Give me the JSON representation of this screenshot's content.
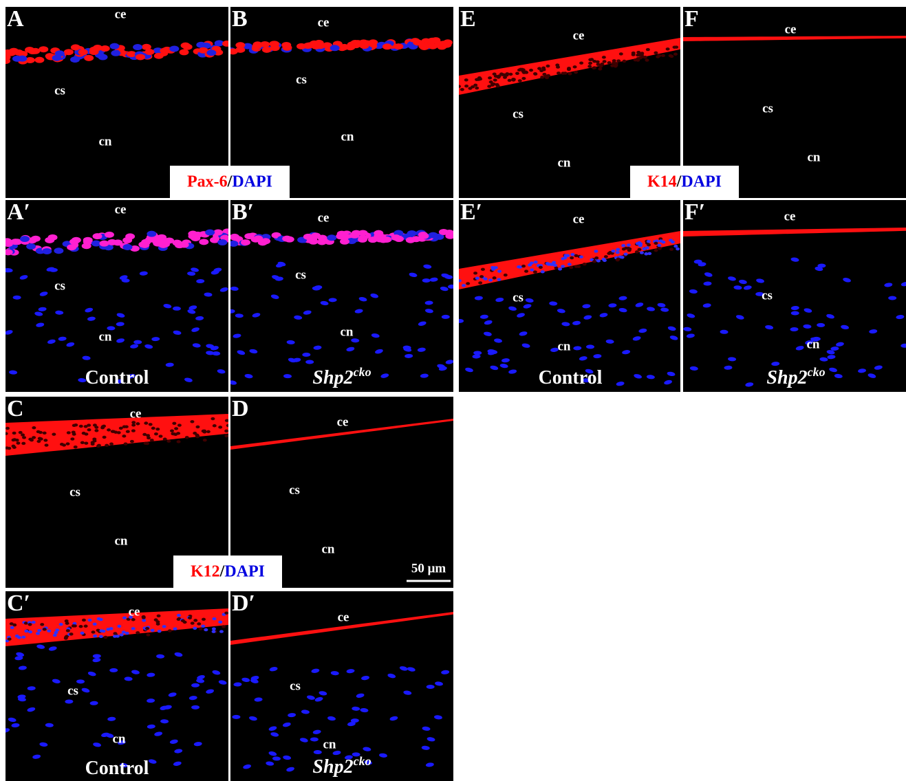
{
  "panels": [
    {
      "letter": "A",
      "ce": "ce",
      "cs": "cs",
      "cn": "cn"
    },
    {
      "letter": "B",
      "ce": "ce",
      "cs": "cs",
      "cn": "cn"
    },
    {
      "letter": "A′",
      "ce": "ce",
      "cs": "cs",
      "cn": "cn",
      "condition": {
        "name": "Control"
      }
    },
    {
      "letter": "B′",
      "ce": "ce",
      "cs": "cs",
      "cn": "cn",
      "condition": {
        "name": "Shp2",
        "sup": "cko"
      }
    },
    {
      "letter": "E",
      "ce": "ce",
      "cs": "cs",
      "cn": "cn"
    },
    {
      "letter": "F",
      "ce": "ce",
      "cs": "cs",
      "cn": "cn"
    },
    {
      "letter": "E′",
      "ce": "ce",
      "cs": "cs",
      "cn": "cn",
      "condition": {
        "name": "Control"
      }
    },
    {
      "letter": "F′",
      "ce": "ce",
      "cs": "cs",
      "cn": "cn",
      "condition": {
        "name": "Shp2",
        "sup": "cko"
      }
    },
    {
      "letter": "C",
      "ce": "ce",
      "cs": "cs",
      "cn": "cn"
    },
    {
      "letter": "D",
      "ce": "ce",
      "cs": "cs",
      "cn": "cn",
      "scale_bar": "50 μm"
    },
    {
      "letter": "C′",
      "ce": "ce",
      "cs": "cs",
      "cn": "cn",
      "condition": {
        "name": "Control"
      }
    },
    {
      "letter": "D′",
      "ce": "ce",
      "cs": "cs",
      "cn": "cn",
      "condition": {
        "name": "Shp2",
        "sup": "cko"
      }
    }
  ],
  "stains": [
    {
      "marker": "Pax-6",
      "sep": "/",
      "counter": "DAPI"
    },
    {
      "marker": "K14",
      "sep": "/",
      "counter": "DAPI"
    },
    {
      "marker": "K12",
      "sep": "/",
      "counter": "DAPI"
    }
  ]
}
